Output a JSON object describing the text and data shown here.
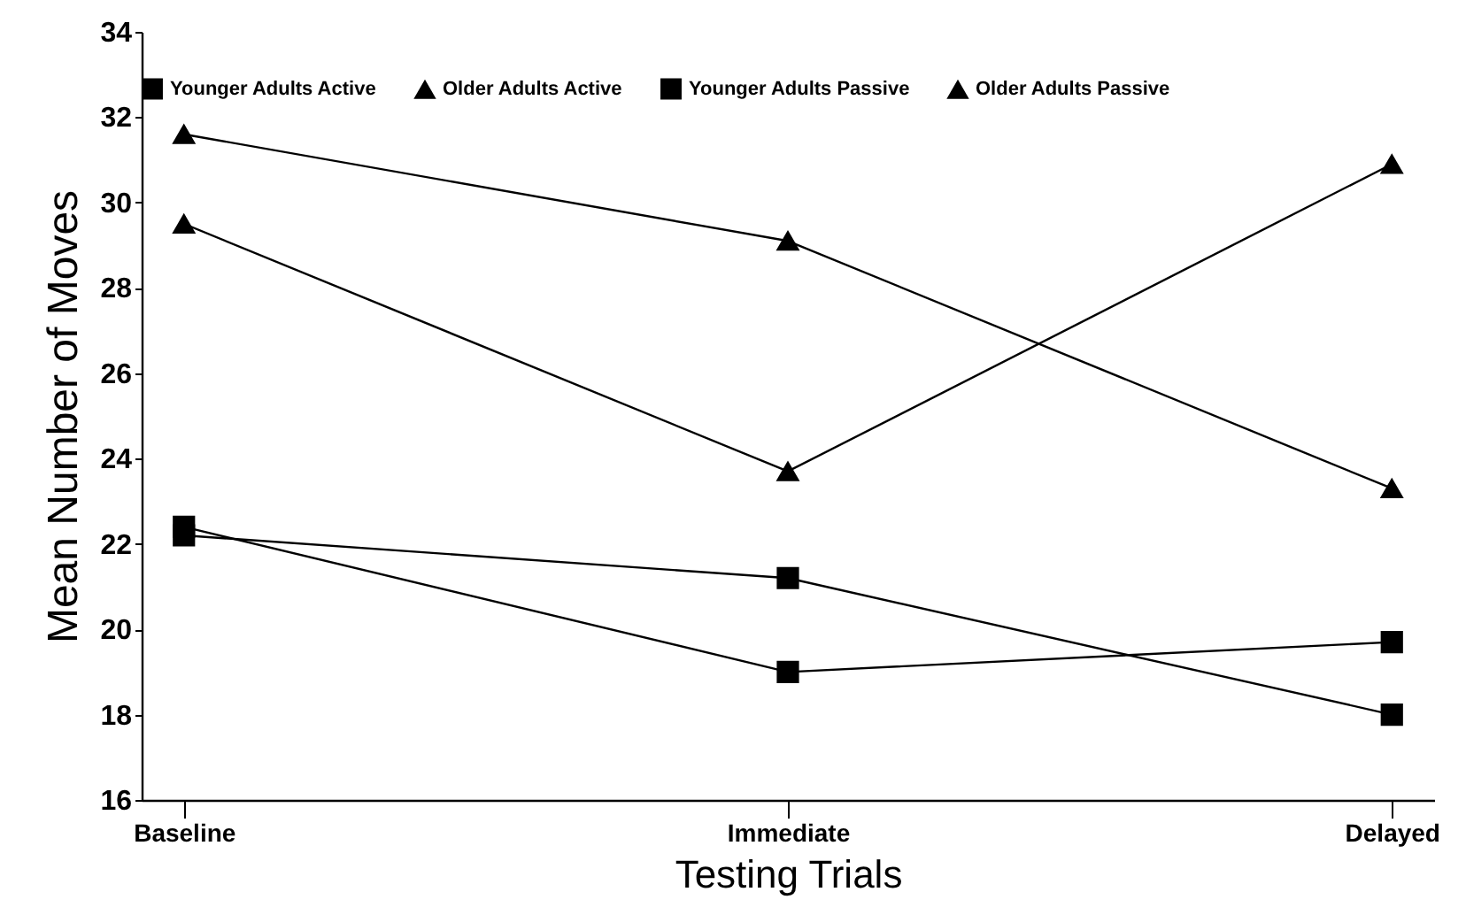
{
  "chart_data": {
    "type": "line",
    "xlabel": "Testing Trials",
    "ylabel": "Mean Number of Moves",
    "categories": [
      "Baseline",
      "Immediate",
      "Delayed"
    ],
    "series": [
      {
        "name": "Younger Adults Active",
        "color": "#000000",
        "marker": "square",
        "values": [
          22.4,
          19.0,
          19.7
        ]
      },
      {
        "name": "Older Adults Active",
        "color": "#000000",
        "marker": "triangle",
        "values": [
          31.6,
          29.1,
          23.3
        ]
      },
      {
        "name": "Younger Adults Passive",
        "color": "#000000",
        "marker": "square",
        "values": [
          22.2,
          21.2,
          18.0
        ]
      },
      {
        "name": "Older Adults Passive",
        "color": "#000000",
        "marker": "triangle",
        "values": [
          29.5,
          23.7,
          30.9
        ]
      }
    ],
    "ylim": [
      16,
      34
    ],
    "yticks": [
      16,
      18,
      20,
      22,
      24,
      26,
      28,
      30,
      32,
      34
    ],
    "grid": false,
    "legend": "top",
    "line_style": "solid"
  }
}
